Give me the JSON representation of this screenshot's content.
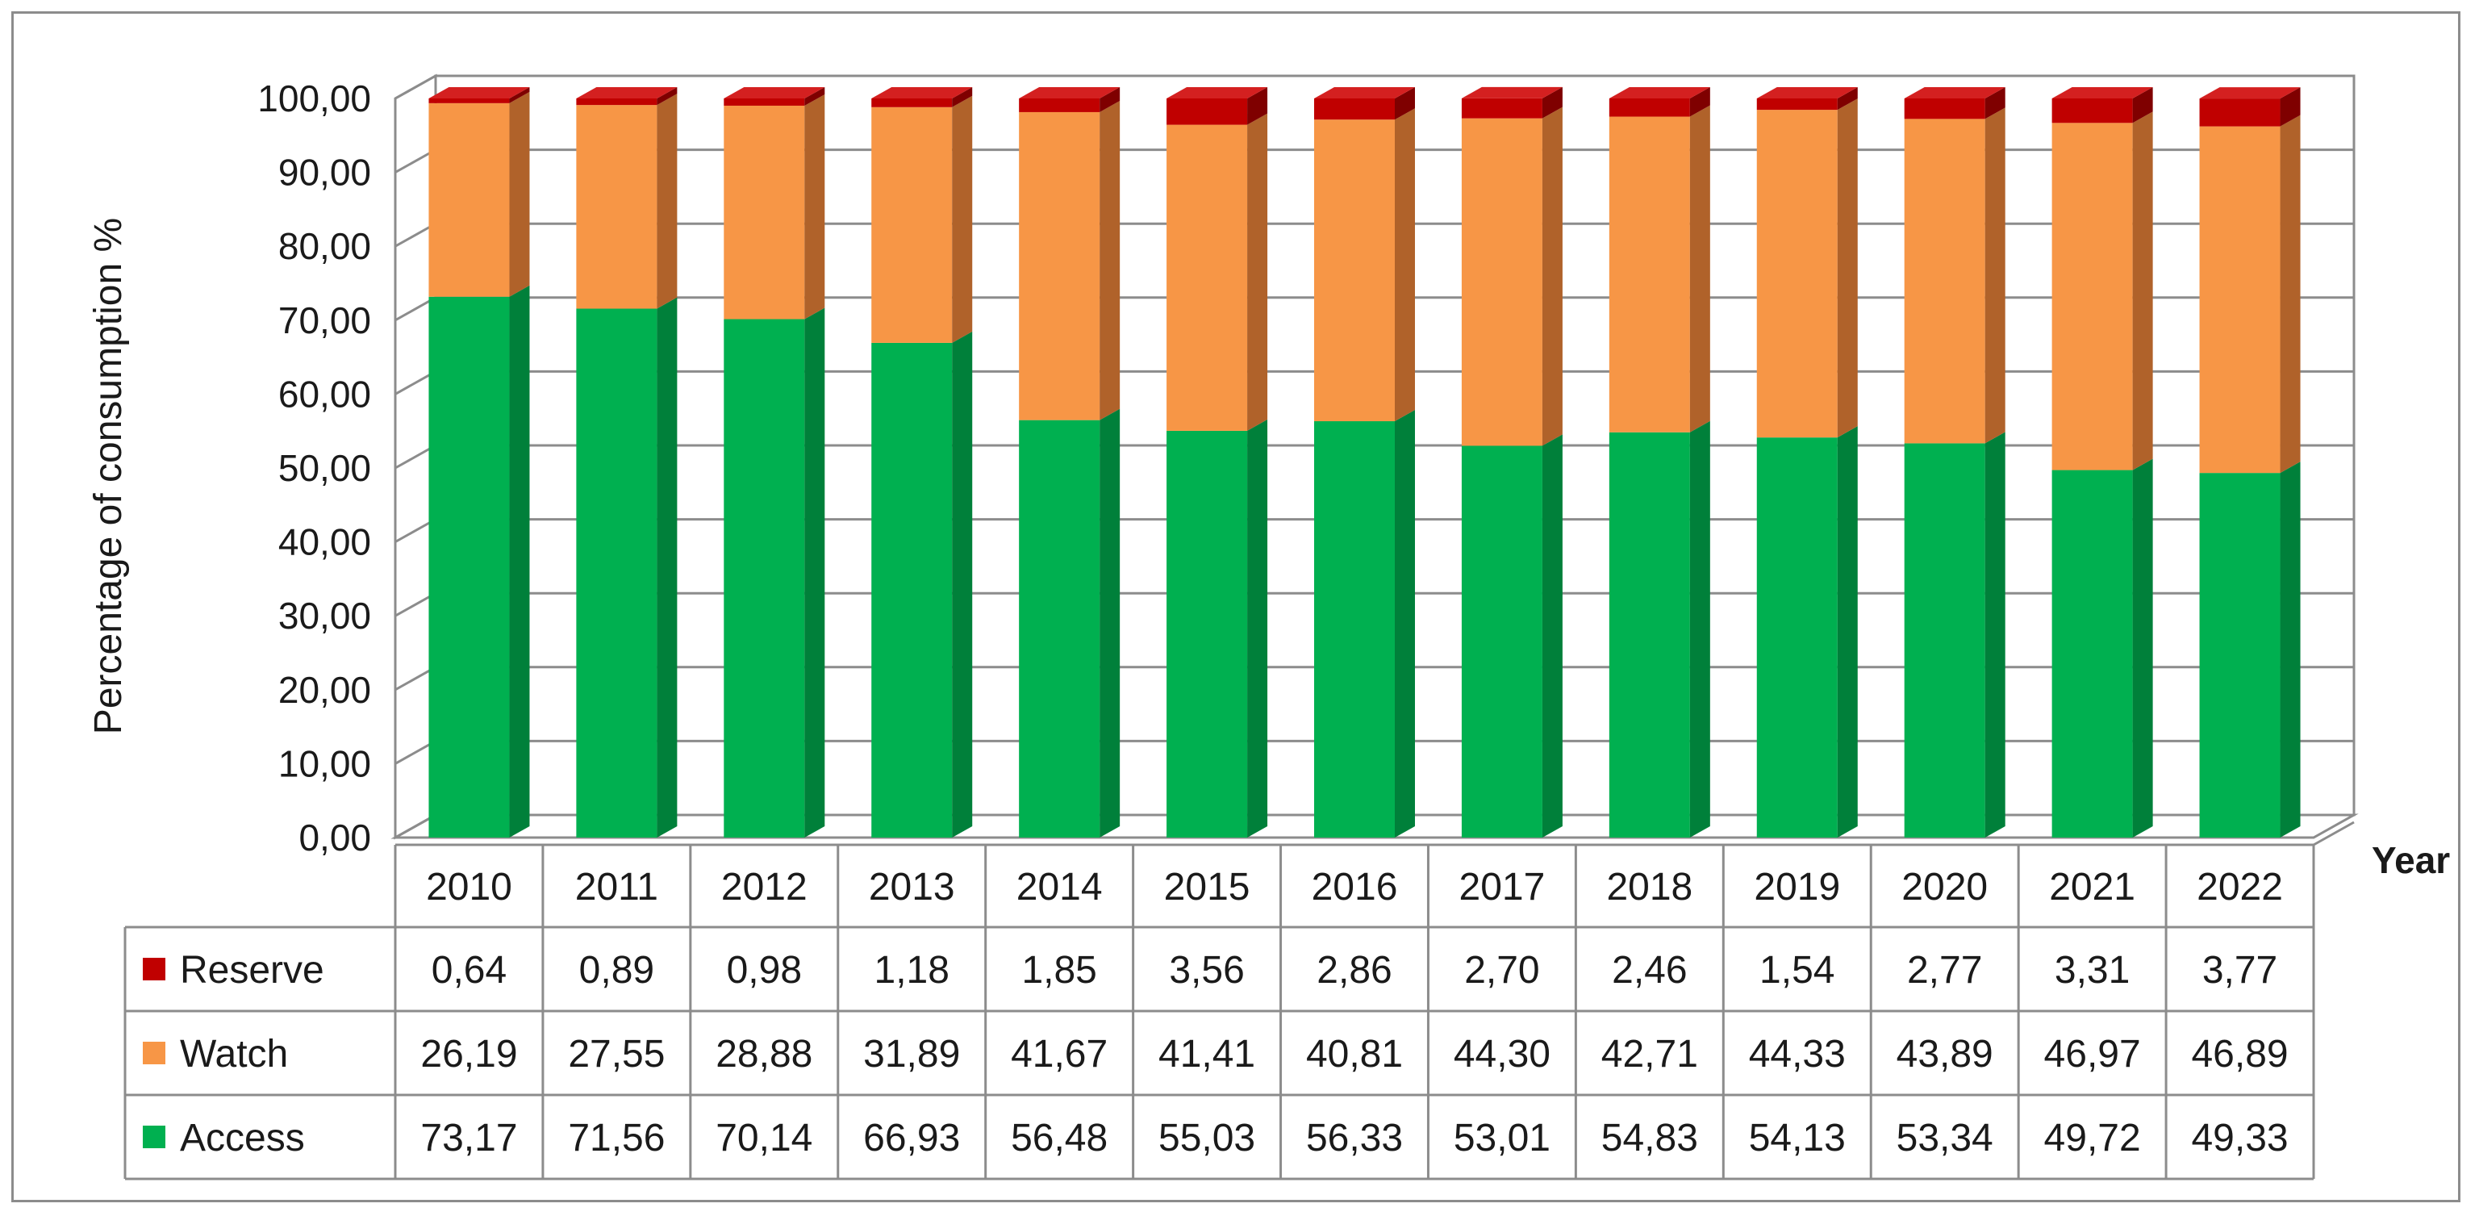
{
  "chart_data": {
    "type": "bar",
    "stacked": true,
    "three_d": true,
    "ylabel": "Percentage of consumption %",
    "xlabel": "Year",
    "ylim": [
      0,
      100
    ],
    "ytick_step": 10,
    "ytick_labels": [
      "0,00",
      "10,00",
      "20,00",
      "30,00",
      "40,00",
      "50,00",
      "60,00",
      "70,00",
      "80,00",
      "90,00",
      "100,00"
    ],
    "grid": true,
    "legend_position": "data-table",
    "categories": [
      "2010",
      "2011",
      "2012",
      "2013",
      "2014",
      "2015",
      "2016",
      "2017",
      "2018",
      "2019",
      "2020",
      "2021",
      "2022"
    ],
    "series": [
      {
        "name": "Access",
        "color": "#00b050",
        "side_color": "#00803a",
        "top_color": "#19c964",
        "values": [
          73.17,
          71.56,
          70.14,
          66.93,
          56.48,
          55.03,
          56.33,
          53.01,
          54.83,
          54.13,
          53.34,
          49.72,
          49.33
        ],
        "labels": [
          "73,17",
          "71,56",
          "70,14",
          "66,93",
          "56,48",
          "55,03",
          "56,33",
          "53,01",
          "54,83",
          "54,13",
          "53,34",
          "49,72",
          "49,33"
        ]
      },
      {
        "name": "Watch",
        "color": "#f79646",
        "side_color": "#b0622a",
        "top_color": "#f9ae70",
        "values": [
          26.19,
          27.55,
          28.88,
          31.89,
          41.67,
          41.41,
          40.81,
          44.3,
          42.71,
          44.33,
          43.89,
          46.97,
          46.89
        ],
        "labels": [
          "26,19",
          "27,55",
          "28,88",
          "31,89",
          "41,67",
          "41,41",
          "40,81",
          "44,30",
          "42,71",
          "44,33",
          "43,89",
          "46,97",
          "46,89"
        ]
      },
      {
        "name": "Reserve",
        "color": "#c00000",
        "side_color": "#7f0000",
        "top_color": "#d42020",
        "values": [
          0.64,
          0.89,
          0.98,
          1.18,
          1.85,
          3.56,
          2.86,
          2.7,
          2.46,
          1.54,
          2.77,
          3.31,
          3.77
        ],
        "labels": [
          "0,64",
          "0,89",
          "0,98",
          "1,18",
          "1,85",
          "3,56",
          "2,86",
          "2,70",
          "2,46",
          "1,54",
          "2,77",
          "3,31",
          "3,77"
        ]
      }
    ],
    "table_row_order": [
      "Reserve",
      "Watch",
      "Access"
    ]
  }
}
